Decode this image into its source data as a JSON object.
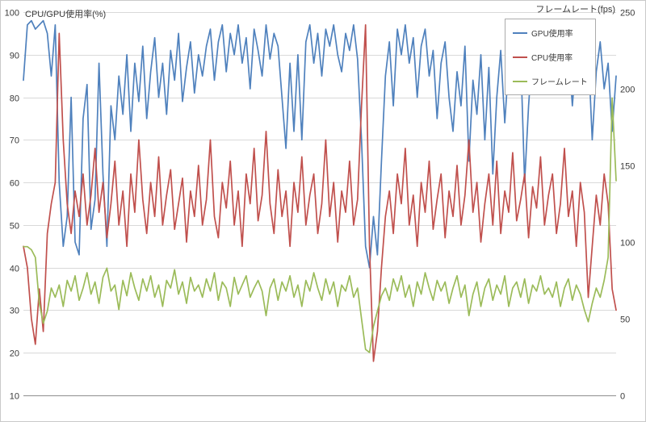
{
  "window": {
    "background": "#ffffff",
    "border_color": "#c9c9c9"
  },
  "chart_data": {
    "type": "line",
    "title": "",
    "grid": "horizontal",
    "gridline_color": "#d9d9d9",
    "axis_line_color": "#8f8f8f",
    "left_axis": {
      "label": "CPU/GPU使用率(%)",
      "min": 10,
      "max": 100,
      "ticks": [
        100,
        90,
        80,
        70,
        60,
        50,
        40,
        30,
        20,
        10
      ]
    },
    "right_axis": {
      "label": "フレームレート(fps)",
      "min": 0,
      "max": 250,
      "ticks": [
        250,
        200,
        150,
        100,
        50,
        0
      ]
    },
    "x_axis": {
      "label": "",
      "tick_labels_visible": false
    },
    "legend": {
      "position": "top-right"
    },
    "series": [
      {
        "name": "GPU使用率",
        "axis": "left",
        "unit": "%",
        "color": "#4F81BD",
        "values": [
          84,
          97,
          98,
          96,
          97,
          98,
          95,
          85,
          97,
          60,
          45,
          52,
          80,
          46,
          43,
          75,
          83,
          49,
          56,
          88,
          62,
          45,
          78,
          70,
          85,
          76,
          90,
          72,
          88,
          79,
          92,
          75,
          86,
          94,
          80,
          88,
          76,
          91,
          84,
          95,
          79,
          87,
          93,
          81,
          90,
          85,
          92,
          96,
          84,
          93,
          97,
          86,
          95,
          90,
          97,
          88,
          94,
          82,
          96,
          91,
          85,
          97,
          89,
          95,
          92,
          80,
          68,
          88,
          72,
          90,
          70,
          93,
          97,
          88,
          95,
          85,
          96,
          92,
          97,
          90,
          86,
          95,
          91,
          97,
          89,
          70,
          45,
          40,
          52,
          43,
          65,
          85,
          93,
          78,
          96,
          90,
          97,
          88,
          94,
          80,
          92,
          96,
          85,
          91,
          75,
          88,
          93,
          80,
          72,
          86,
          78,
          92,
          65,
          84,
          76,
          90,
          70,
          87,
          62,
          80,
          91,
          74,
          88,
          95,
          82,
          90,
          60,
          78,
          92,
          85,
          94,
          88,
          96,
          90,
          83,
          94,
          87,
          92,
          78,
          90,
          95,
          85,
          91,
          70,
          86,
          93,
          82,
          88,
          72,
          85
        ]
      },
      {
        "name": "CPU使用率",
        "axis": "left",
        "unit": "%",
        "color": "#C0504D",
        "values": [
          45,
          40,
          28,
          22,
          35,
          25,
          48,
          55,
          60,
          95,
          70,
          55,
          48,
          58,
          52,
          62,
          50,
          57,
          68,
          53,
          60,
          47,
          55,
          65,
          50,
          58,
          45,
          62,
          53,
          70,
          56,
          48,
          60,
          52,
          66,
          50,
          57,
          63,
          49,
          55,
          61,
          46,
          58,
          52,
          64,
          50,
          56,
          70,
          52,
          47,
          60,
          54,
          65,
          50,
          58,
          45,
          62,
          55,
          68,
          51,
          57,
          72,
          55,
          48,
          63,
          52,
          58,
          45,
          60,
          53,
          66,
          50,
          57,
          62,
          48,
          55,
          70,
          52,
          60,
          46,
          58,
          53,
          65,
          50,
          56,
          78,
          97,
          45,
          18,
          25,
          40,
          52,
          58,
          48,
          62,
          55,
          68,
          50,
          57,
          45,
          60,
          53,
          65,
          49,
          56,
          62,
          47,
          58,
          52,
          64,
          50,
          57,
          70,
          53,
          60,
          46,
          55,
          62,
          50,
          65,
          48,
          58,
          53,
          67,
          51,
          56,
          62,
          47,
          59,
          54,
          66,
          50,
          57,
          62,
          48,
          55,
          68,
          52,
          58,
          45,
          60,
          53,
          33,
          45,
          57,
          50,
          62,
          55,
          35,
          30
        ]
      },
      {
        "name": "フレームレート",
        "axis": "right",
        "unit": "fps",
        "color": "#9BBB59",
        "values": [
          97,
          97,
          95,
          90,
          60,
          47,
          55,
          70,
          64,
          72,
          58,
          75,
          68,
          78,
          62,
          70,
          80,
          66,
          74,
          60,
          77,
          83,
          68,
          72,
          56,
          75,
          65,
          80,
          70,
          62,
          76,
          68,
          78,
          64,
          72,
          58,
          75,
          70,
          82,
          66,
          74,
          60,
          77,
          68,
          72,
          64,
          76,
          68,
          80,
          62,
          74,
          70,
          58,
          77,
          66,
          72,
          78,
          64,
          70,
          75,
          68,
          52,
          70,
          76,
          62,
          74,
          68,
          78,
          64,
          72,
          58,
          75,
          68,
          80,
          70,
          62,
          76,
          66,
          74,
          58,
          72,
          68,
          78,
          64,
          70,
          50,
          30,
          28,
          45,
          55,
          65,
          70,
          62,
          76,
          68,
          78,
          64,
          72,
          58,
          74,
          66,
          80,
          70,
          62,
          75,
          68,
          74,
          60,
          70,
          78,
          64,
          72,
          52,
          66,
          74,
          58,
          70,
          76,
          62,
          72,
          66,
          78,
          58,
          70,
          74,
          64,
          76,
          60,
          72,
          68,
          78,
          66,
          70,
          64,
          74,
          58,
          70,
          76,
          62,
          72,
          66,
          56,
          48,
          60,
          70,
          64,
          75,
          90,
          194,
          140
        ]
      }
    ]
  }
}
